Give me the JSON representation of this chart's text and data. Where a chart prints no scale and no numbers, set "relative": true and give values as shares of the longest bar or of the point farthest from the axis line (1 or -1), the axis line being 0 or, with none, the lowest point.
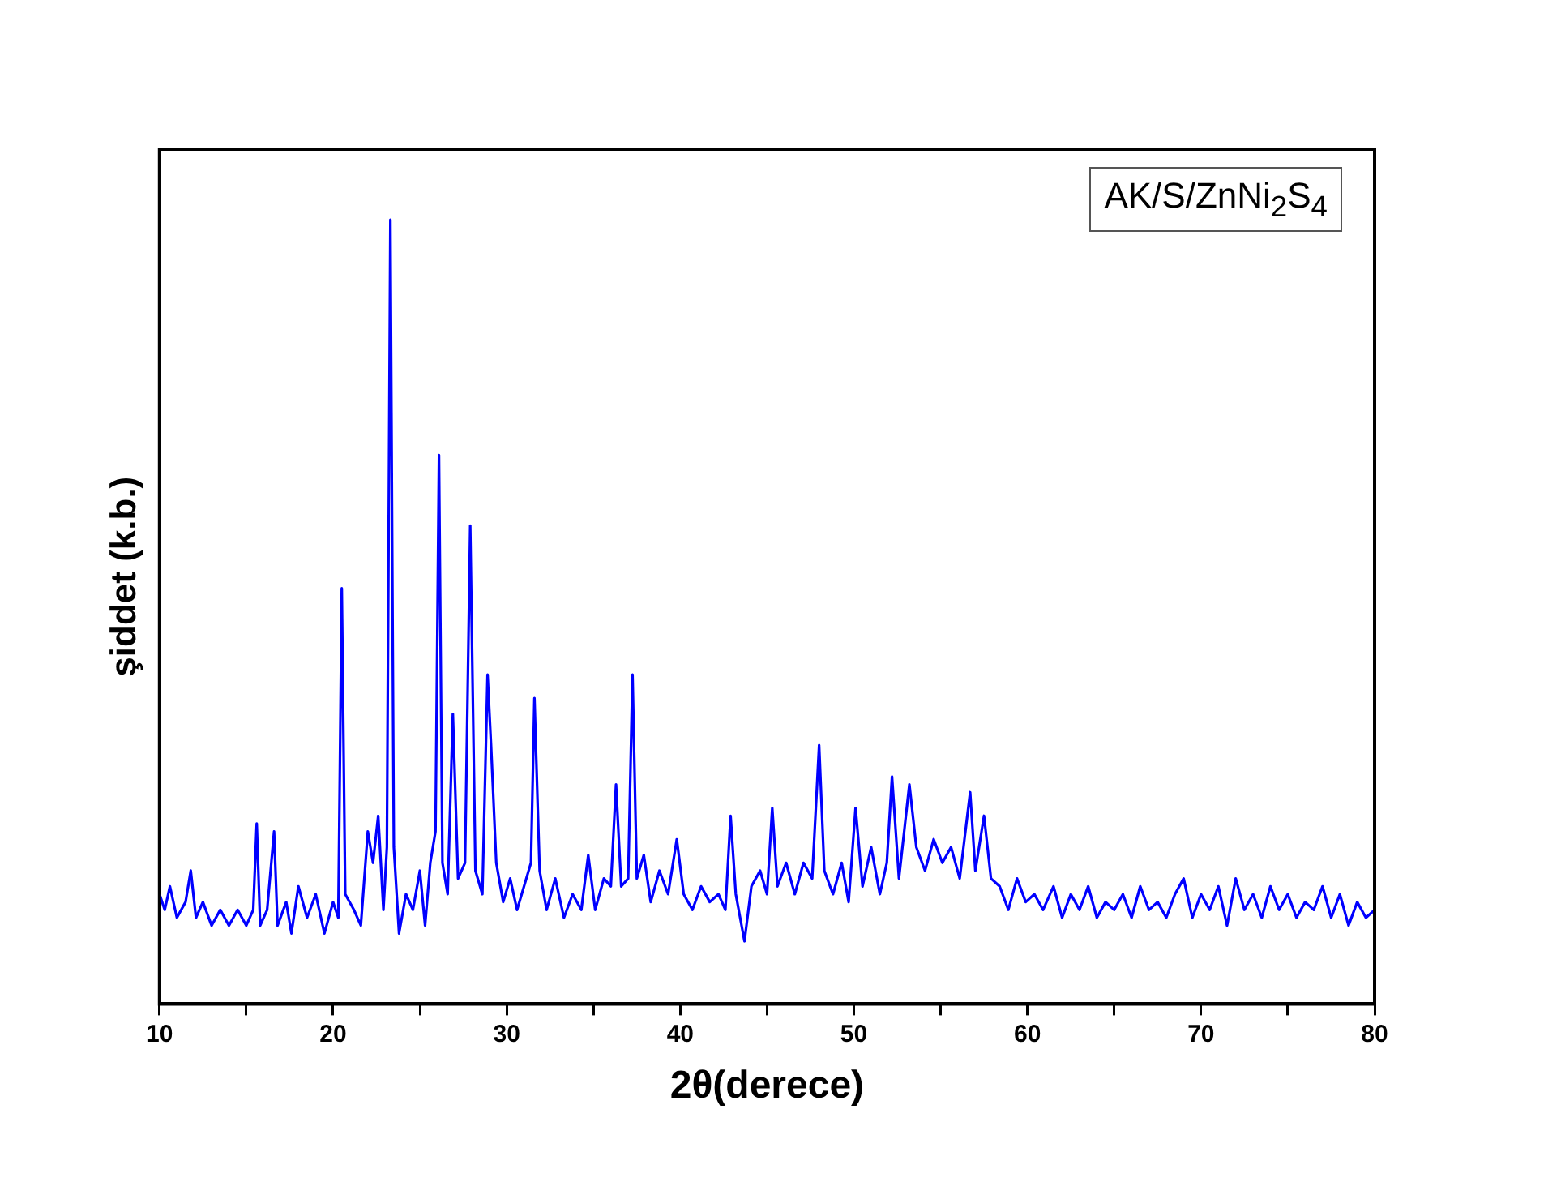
{
  "chart_data": {
    "type": "line",
    "xlabel": "2θ(derece)",
    "ylabel": "şiddet (k.b.)",
    "annotations": [
      "AK/S/ZnNi$_{2}$S$_{4}$"
    ],
    "relative": true,
    "xlim": [
      10,
      80
    ],
    "xticks": [
      10,
      {
        "value": 15,
        "label": null
      },
      20,
      {
        "value": 25,
        "label": null
      },
      30,
      {
        "value": 35,
        "label": null
      },
      40,
      {
        "value": 45,
        "label": null
      },
      50,
      {
        "value": 55,
        "label": null
      },
      60,
      {
        "value": 65,
        "label": null
      },
      70,
      {
        "value": 75,
        "label": null
      },
      80
    ],
    "grid": false,
    "legend": false,
    "marker": "none",
    "line_style": "solid",
    "x": [
      10,
      10.3,
      10.6,
      11,
      11.5,
      11.8,
      12.1,
      12.5,
      13,
      13.5,
      14,
      14.5,
      15,
      15.4,
      15.6,
      15.8,
      16.2,
      16.6,
      16.8,
      17.3,
      17.6,
      18,
      18.5,
      19,
      19.5,
      20,
      20.3,
      20.5,
      20.7,
      21.2,
      21.6,
      22,
      22.3,
      22.6,
      22.9,
      23.1,
      23.3,
      23.5,
      23.8,
      24.2,
      24.6,
      25,
      25.3,
      25.6,
      25.9,
      26.1,
      26.3,
      26.6,
      26.9,
      27.2,
      27.6,
      27.9,
      28.2,
      28.6,
      28.9,
      29.1,
      29.4,
      29.8,
      30.2,
      30.6,
      31,
      31.4,
      31.6,
      31.9,
      32.3,
      32.8,
      33.3,
      33.8,
      34.3,
      34.7,
      35.1,
      35.6,
      36,
      36.3,
      36.6,
      37,
      37.25,
      37.5,
      37.9,
      38.3,
      38.8,
      39.3,
      39.8,
      40.2,
      40.7,
      41.2,
      41.7,
      42.2,
      42.6,
      42.9,
      43.2,
      43.7,
      44.1,
      44.6,
      45,
      45.3,
      45.6,
      46.1,
      46.6,
      47.1,
      47.6,
      48,
      48.3,
      48.8,
      49.3,
      49.7,
      50.1,
      50.5,
      51,
      51.5,
      51.9,
      52.2,
      52.6,
      53.2,
      53.6,
      54.1,
      54.6,
      55.1,
      55.6,
      56.1,
      56.7,
      57,
      57.5,
      57.9,
      58.4,
      58.9,
      59.4,
      59.9,
      60.4,
      60.9,
      61.5,
      62,
      62.5,
      63,
      63.5,
      64,
      64.5,
      65,
      65.5,
      66,
      66.5,
      67,
      67.5,
      68,
      68.5,
      69,
      69.5,
      70,
      70.5,
      71,
      71.5,
      72,
      72.5,
      73,
      73.5,
      74,
      74.5,
      75,
      75.5,
      76,
      76.5,
      77,
      77.5,
      78,
      78.5,
      79,
      79.5,
      80
    ],
    "series": [
      {
        "color": "#0000ff",
        "values": [
          0.14,
          0.12,
          0.15,
          0.11,
          0.13,
          0.17,
          0.11,
          0.13,
          0.1,
          0.12,
          0.1,
          0.12,
          0.1,
          0.12,
          0.23,
          0.1,
          0.12,
          0.22,
          0.1,
          0.13,
          0.09,
          0.15,
          0.11,
          0.14,
          0.09,
          0.13,
          0.11,
          0.53,
          0.14,
          0.12,
          0.1,
          0.22,
          0.18,
          0.24,
          0.12,
          0.2,
          1.0,
          0.2,
          0.09,
          0.14,
          0.12,
          0.17,
          0.1,
          0.18,
          0.22,
          0.7,
          0.18,
          0.14,
          0.37,
          0.16,
          0.18,
          0.61,
          0.17,
          0.14,
          0.42,
          0.33,
          0.18,
          0.13,
          0.16,
          0.12,
          0.15,
          0.18,
          0.39,
          0.17,
          0.12,
          0.16,
          0.11,
          0.14,
          0.12,
          0.19,
          0.12,
          0.16,
          0.15,
          0.28,
          0.15,
          0.16,
          0.42,
          0.16,
          0.19,
          0.13,
          0.17,
          0.14,
          0.21,
          0.14,
          0.12,
          0.15,
          0.13,
          0.14,
          0.12,
          0.24,
          0.14,
          0.08,
          0.15,
          0.17,
          0.14,
          0.25,
          0.15,
          0.18,
          0.14,
          0.18,
          0.16,
          0.33,
          0.17,
          0.14,
          0.18,
          0.13,
          0.25,
          0.15,
          0.2,
          0.14,
          0.18,
          0.29,
          0.16,
          0.28,
          0.2,
          0.17,
          0.21,
          0.18,
          0.2,
          0.16,
          0.27,
          0.17,
          0.24,
          0.16,
          0.15,
          0.12,
          0.16,
          0.13,
          0.14,
          0.12,
          0.15,
          0.11,
          0.14,
          0.12,
          0.15,
          0.11,
          0.13,
          0.12,
          0.14,
          0.11,
          0.15,
          0.12,
          0.13,
          0.11,
          0.14,
          0.16,
          0.11,
          0.14,
          0.12,
          0.15,
          0.1,
          0.16,
          0.12,
          0.14,
          0.11,
          0.15,
          0.12,
          0.14,
          0.11,
          0.13,
          0.12,
          0.15,
          0.11,
          0.14,
          0.1,
          0.13,
          0.11,
          0.12
        ]
      }
    ]
  }
}
